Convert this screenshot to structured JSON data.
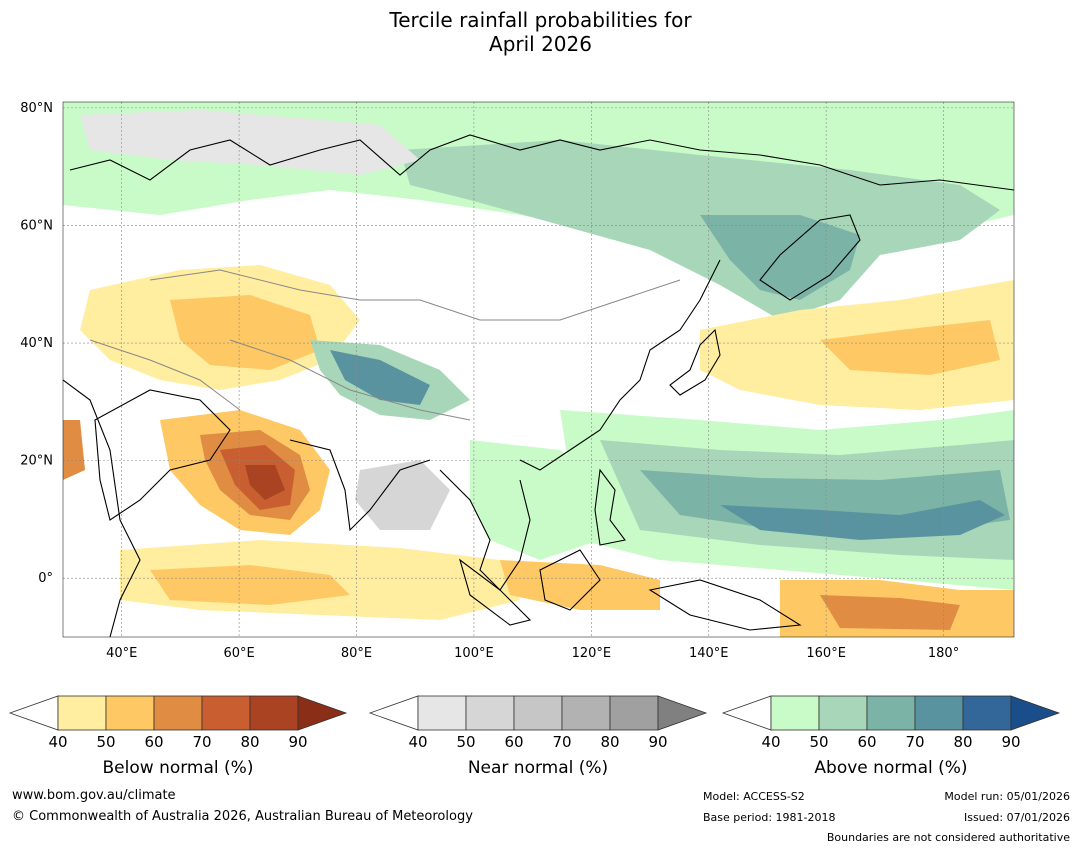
{
  "title": {
    "line1": "Tercile rainfall probabilities for",
    "line2": "April 2026"
  },
  "map": {
    "lat_labels": [
      "80°N",
      "60°N",
      "40°N",
      "20°N",
      "0°"
    ],
    "lat_values": [
      80,
      60,
      40,
      20,
      0
    ],
    "lon_labels": [
      "40°E",
      "60°E",
      "80°E",
      "100°E",
      "120°E",
      "140°E",
      "160°E",
      "180°"
    ],
    "lon_values": [
      40,
      60,
      80,
      100,
      120,
      140,
      160,
      180
    ],
    "lon_range": [
      30,
      192
    ],
    "lat_range": [
      -10,
      81
    ]
  },
  "colorbars": [
    {
      "name": "below",
      "label": "Below normal (%)",
      "ticks": [
        "40",
        "50",
        "60",
        "70",
        "80",
        "90"
      ],
      "colors": [
        "#ffffff",
        "#ffeda0",
        "#fec965",
        "#e08c42",
        "#c95f30",
        "#a94322",
        "#8b2e18"
      ]
    },
    {
      "name": "near",
      "label": "Near normal (%)",
      "ticks": [
        "40",
        "50",
        "60",
        "70",
        "80",
        "90"
      ],
      "colors": [
        "#ffffff",
        "#e6e6e6",
        "#d6d6d6",
        "#c6c6c6",
        "#b2b2b2",
        "#a0a0a0",
        "#808080"
      ]
    },
    {
      "name": "above",
      "label": "Above normal (%)",
      "ticks": [
        "40",
        "50",
        "60",
        "70",
        "80",
        "90"
      ],
      "colors": [
        "#ffffff",
        "#c9fbc9",
        "#a7d7b8",
        "#7bb3a6",
        "#5a93a0",
        "#336699",
        "#1a4e8a"
      ]
    }
  ],
  "footer": {
    "website": "www.bom.gov.au/climate",
    "copyright": "© Commonwealth of Australia 2026, Australian Bureau of Meteorology",
    "model": "Model: ACCESS-S2",
    "base_period": "Base period: 1981-2018",
    "model_run": "Model run: 05/01/2026",
    "issued": "Issued: 07/01/2026",
    "disclaimer": "Boundaries are not considered authoritative"
  }
}
